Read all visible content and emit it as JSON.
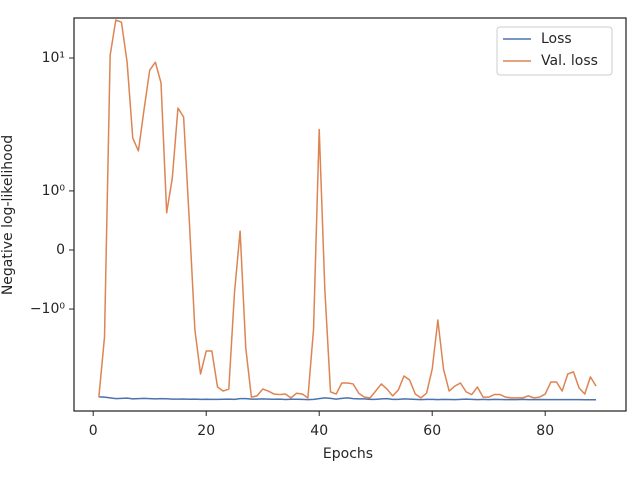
{
  "chart_data": {
    "type": "line",
    "xlabel": "Epochs",
    "ylabel": "Negative log-likelihood",
    "yscale": "symlog",
    "linthresh": 1,
    "linscale": 0.4,
    "xlim": [
      -3.4,
      94.3
    ],
    "xticks": [
      0,
      20,
      40,
      60,
      80
    ],
    "ylim": [
      -5.85,
      20
    ],
    "yticks": [
      {
        "value": -1,
        "label": "−10⁰"
      },
      0,
      {
        "value": 1,
        "label": "10⁰"
      },
      {
        "value": 10,
        "label": "10¹"
      }
    ],
    "legend": "upper right",
    "x": [
      1,
      2,
      3,
      4,
      5,
      6,
      7,
      8,
      9,
      10,
      11,
      12,
      13,
      14,
      15,
      16,
      17,
      18,
      19,
      20,
      21,
      22,
      23,
      24,
      25,
      26,
      27,
      28,
      29,
      30,
      31,
      32,
      33,
      34,
      35,
      36,
      37,
      38,
      39,
      40,
      41,
      42,
      43,
      44,
      45,
      46,
      47,
      48,
      49,
      50,
      51,
      52,
      53,
      54,
      55,
      56,
      57,
      58,
      59,
      60,
      61,
      62,
      63,
      64,
      65,
      66,
      67,
      68,
      69,
      70,
      71,
      72,
      73,
      74,
      75,
      76,
      77,
      78,
      79,
      80,
      81,
      82,
      83,
      84,
      85,
      86,
      87,
      88,
      89
    ],
    "series": [
      {
        "name": "Loss",
        "color": "#4c72b0",
        "values": [
          -4.58,
          -4.6,
          -4.66,
          -4.72,
          -4.7,
          -4.68,
          -4.74,
          -4.72,
          -4.7,
          -4.72,
          -4.74,
          -4.72,
          -4.73,
          -4.76,
          -4.76,
          -4.75,
          -4.77,
          -4.76,
          -4.78,
          -4.77,
          -4.78,
          -4.78,
          -4.77,
          -4.76,
          -4.78,
          -4.72,
          -4.72,
          -4.76,
          -4.76,
          -4.74,
          -4.76,
          -4.77,
          -4.76,
          -4.79,
          -4.77,
          -4.77,
          -4.78,
          -4.8,
          -4.78,
          -4.72,
          -4.66,
          -4.7,
          -4.76,
          -4.7,
          -4.66,
          -4.72,
          -4.74,
          -4.74,
          -4.78,
          -4.78,
          -4.74,
          -4.72,
          -4.78,
          -4.78,
          -4.74,
          -4.76,
          -4.78,
          -4.8,
          -4.78,
          -4.78,
          -4.8,
          -4.78,
          -4.79,
          -4.8,
          -4.78,
          -4.76,
          -4.78,
          -4.8,
          -4.78,
          -4.8,
          -4.78,
          -4.79,
          -4.8,
          -4.8,
          -4.8,
          -4.78,
          -4.8,
          -4.8,
          -4.79,
          -4.8,
          -4.8,
          -4.8,
          -4.8,
          -4.8,
          -4.8,
          -4.8,
          -4.81,
          -4.81,
          -4.81
        ]
      },
      {
        "name": "Val. loss",
        "color": "#dd8452",
        "values": [
          -4.6,
          -1.62,
          10.5,
          19.3,
          18.6,
          9.3,
          2.5,
          2.0,
          4.1,
          8.1,
          9.3,
          6.5,
          0.63,
          1.25,
          4.2,
          3.6,
          0.51,
          -1.44,
          -3.08,
          -2.07,
          -2.07,
          -3.86,
          -4.14,
          -4.0,
          -0.73,
          0.32,
          -1.96,
          -4.6,
          -4.5,
          -4.0,
          -4.14,
          -4.36,
          -4.4,
          -4.36,
          -4.66,
          -4.3,
          -4.36,
          -4.66,
          -1.41,
          2.9,
          -0.68,
          -4.2,
          -4.36,
          -3.6,
          -3.6,
          -3.66,
          -4.3,
          -4.6,
          -4.66,
          -4.14,
          -3.66,
          -4.0,
          -4.5,
          -4.07,
          -3.19,
          -3.42,
          -4.36,
          -4.66,
          -4.3,
          -2.83,
          -1.21,
          -2.83,
          -4.14,
          -3.8,
          -3.6,
          -4.2,
          -4.4,
          -3.86,
          -4.6,
          -4.6,
          -4.4,
          -4.4,
          -4.6,
          -4.66,
          -4.66,
          -4.66,
          -4.5,
          -4.66,
          -4.6,
          -4.36,
          -3.54,
          -3.54,
          -4.14,
          -3.08,
          -2.97,
          -3.93,
          -4.36,
          -3.24,
          -3.8
        ]
      }
    ]
  }
}
